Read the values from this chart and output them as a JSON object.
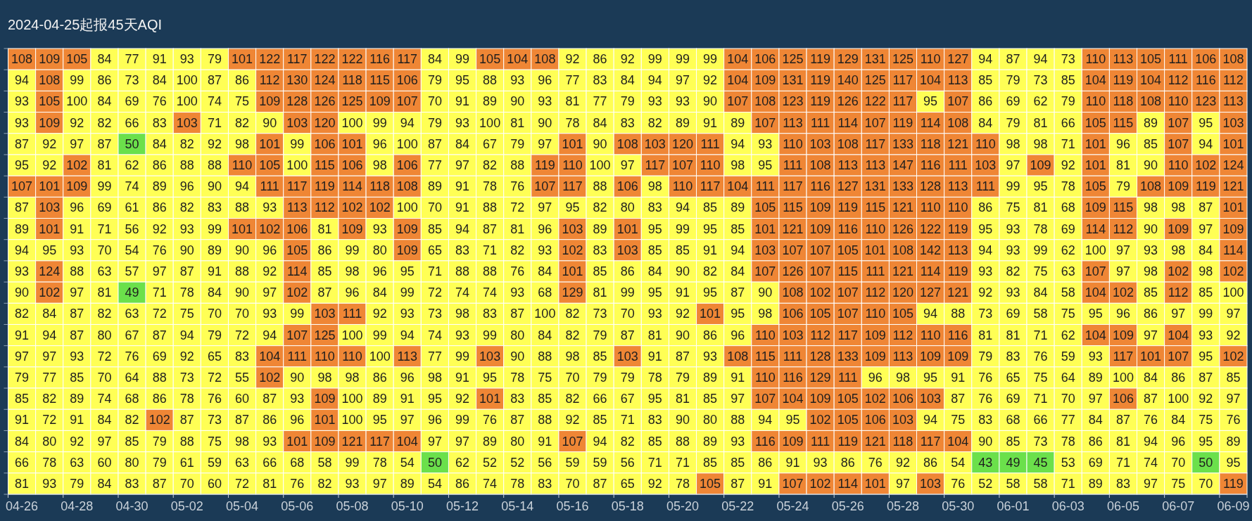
{
  "chart_data": {
    "type": "heatmap",
    "title": "2024-04-25起报45天AQI",
    "categories": [
      "04-26",
      null,
      "04-28",
      null,
      "04-30",
      null,
      "05-02",
      null,
      "05-04",
      null,
      "05-06",
      null,
      "05-08",
      null,
      "05-10",
      null,
      "05-12",
      null,
      "05-14",
      null,
      "05-16",
      null,
      "05-18",
      null,
      "05-20",
      null,
      "05-22",
      null,
      "05-24",
      null,
      "05-26",
      null,
      "05-28",
      null,
      "05-30",
      null,
      "06-01",
      null,
      "06-03",
      null,
      "06-05",
      null,
      "06-07",
      null,
      "06-09"
    ],
    "y_categories": [
      null,
      null,
      null,
      null,
      null,
      null,
      null,
      null,
      null,
      null,
      null,
      null,
      null,
      null,
      null,
      null,
      null,
      null,
      null,
      null,
      null
    ],
    "cells": [
      [
        108,
        109,
        105,
        84,
        77,
        91,
        93,
        79,
        101,
        122,
        117,
        122,
        122,
        116,
        117,
        84,
        99,
        105,
        104,
        108,
        92,
        86,
        92,
        99,
        99,
        99,
        104,
        106,
        125,
        119,
        129,
        131,
        125,
        110,
        127,
        94,
        87,
        94,
        73,
        110,
        113,
        105,
        111,
        106,
        108
      ],
      [
        94,
        108,
        99,
        86,
        73,
        84,
        100,
        87,
        86,
        112,
        130,
        124,
        118,
        115,
        106,
        79,
        95,
        88,
        93,
        96,
        77,
        83,
        84,
        94,
        97,
        92,
        104,
        109,
        131,
        119,
        140,
        125,
        117,
        104,
        113,
        85,
        79,
        73,
        85,
        104,
        119,
        104,
        112,
        116,
        112
      ],
      [
        93,
        105,
        100,
        84,
        69,
        76,
        100,
        74,
        75,
        109,
        128,
        126,
        125,
        109,
        107,
        70,
        91,
        89,
        90,
        93,
        81,
        77,
        79,
        93,
        93,
        90,
        107,
        108,
        123,
        119,
        126,
        122,
        117,
        95,
        107,
        86,
        69,
        62,
        79,
        110,
        118,
        108,
        110,
        123,
        113
      ],
      [
        93,
        109,
        92,
        82,
        66,
        83,
        103,
        71,
        82,
        90,
        103,
        120,
        100,
        99,
        94,
        79,
        93,
        100,
        81,
        90,
        78,
        84,
        83,
        82,
        89,
        91,
        89,
        107,
        113,
        111,
        114,
        107,
        119,
        114,
        108,
        84,
        79,
        81,
        66,
        105,
        115,
        89,
        107,
        95,
        103
      ],
      [
        87,
        92,
        97,
        87,
        50,
        84,
        82,
        92,
        98,
        101,
        99,
        106,
        101,
        96,
        100,
        87,
        84,
        67,
        79,
        97,
        101,
        90,
        108,
        103,
        120,
        111,
        94,
        93,
        110,
        103,
        108,
        117,
        133,
        118,
        121,
        110,
        98,
        98,
        71,
        101,
        96,
        85,
        107,
        94,
        101
      ],
      [
        95,
        92,
        102,
        81,
        62,
        86,
        88,
        88,
        110,
        105,
        100,
        115,
        106,
        98,
        106,
        77,
        97,
        82,
        88,
        119,
        110,
        100,
        97,
        117,
        107,
        110,
        98,
        95,
        111,
        108,
        113,
        113,
        147,
        116,
        111,
        103,
        97,
        109,
        92,
        101,
        81,
        90,
        110,
        102,
        124
      ],
      [
        107,
        101,
        109,
        99,
        74,
        89,
        96,
        90,
        94,
        111,
        117,
        119,
        114,
        118,
        108,
        89,
        91,
        78,
        76,
        107,
        117,
        88,
        106,
        98,
        110,
        117,
        104,
        111,
        117,
        116,
        127,
        131,
        133,
        128,
        113,
        111,
        99,
        95,
        78,
        105,
        79,
        108,
        109,
        119,
        121
      ],
      [
        87,
        103,
        96,
        69,
        61,
        86,
        82,
        83,
        88,
        93,
        113,
        112,
        102,
        102,
        100,
        70,
        91,
        88,
        72,
        97,
        95,
        82,
        80,
        83,
        94,
        85,
        89,
        105,
        115,
        109,
        119,
        115,
        121,
        110,
        110,
        86,
        75,
        81,
        68,
        109,
        115,
        98,
        98,
        87,
        101
      ],
      [
        89,
        101,
        91,
        71,
        56,
        92,
        93,
        99,
        101,
        102,
        106,
        81,
        109,
        93,
        109,
        85,
        94,
        87,
        81,
        96,
        103,
        89,
        101,
        95,
        99,
        95,
        85,
        101,
        121,
        109,
        116,
        110,
        126,
        122,
        119,
        95,
        93,
        78,
        69,
        114,
        112,
        90,
        109,
        97,
        109
      ],
      [
        94,
        95,
        93,
        70,
        54,
        76,
        90,
        89,
        90,
        96,
        105,
        86,
        99,
        80,
        109,
        65,
        83,
        71,
        82,
        93,
        102,
        83,
        103,
        85,
        85,
        91,
        94,
        103,
        107,
        107,
        105,
        101,
        108,
        142,
        113,
        94,
        93,
        99,
        62,
        100,
        97,
        93,
        98,
        84,
        114
      ],
      [
        93,
        124,
        88,
        63,
        57,
        97,
        87,
        91,
        88,
        92,
        114,
        85,
        98,
        96,
        95,
        71,
        88,
        88,
        76,
        84,
        101,
        85,
        86,
        84,
        90,
        82,
        84,
        107,
        126,
        107,
        115,
        111,
        121,
        114,
        119,
        93,
        82,
        75,
        63,
        107,
        97,
        98,
        102,
        98,
        102
      ],
      [
        90,
        102,
        97,
        81,
        49,
        71,
        78,
        84,
        90,
        97,
        102,
        87,
        96,
        84,
        99,
        72,
        74,
        74,
        93,
        68,
        129,
        81,
        99,
        95,
        91,
        95,
        87,
        90,
        108,
        102,
        107,
        112,
        120,
        127,
        121,
        92,
        93,
        84,
        58,
        104,
        102,
        85,
        112,
        85,
        100
      ],
      [
        82,
        84,
        87,
        82,
        63,
        72,
        75,
        70,
        70,
        93,
        99,
        103,
        111,
        92,
        93,
        73,
        98,
        83,
        87,
        100,
        82,
        73,
        70,
        93,
        92,
        101,
        95,
        98,
        106,
        105,
        107,
        110,
        105,
        94,
        88,
        73,
        69,
        58,
        75,
        95,
        96,
        86,
        97,
        99,
        97
      ],
      [
        91,
        94,
        87,
        80,
        67,
        87,
        94,
        79,
        72,
        94,
        107,
        125,
        100,
        99,
        94,
        74,
        93,
        99,
        80,
        84,
        82,
        79,
        87,
        81,
        90,
        86,
        96,
        110,
        103,
        112,
        117,
        109,
        112,
        110,
        116,
        81,
        81,
        71,
        62,
        104,
        109,
        97,
        104,
        93,
        92
      ],
      [
        97,
        97,
        93,
        72,
        76,
        69,
        92,
        65,
        83,
        104,
        111,
        110,
        110,
        100,
        113,
        77,
        99,
        103,
        90,
        88,
        98,
        85,
        103,
        91,
        87,
        93,
        108,
        115,
        111,
        128,
        133,
        109,
        113,
        109,
        109,
        79,
        83,
        76,
        59,
        93,
        117,
        101,
        107,
        95,
        102
      ],
      [
        79,
        77,
        85,
        70,
        64,
        88,
        73,
        72,
        55,
        102,
        90,
        98,
        98,
        86,
        96,
        98,
        91,
        95,
        78,
        75,
        70,
        79,
        79,
        78,
        79,
        89,
        91,
        110,
        116,
        129,
        111,
        96,
        98,
        95,
        91,
        76,
        65,
        75,
        64,
        89,
        100,
        84,
        86,
        87,
        85
      ],
      [
        85,
        82,
        89,
        74,
        68,
        86,
        78,
        76,
        60,
        87,
        93,
        109,
        100,
        89,
        91,
        95,
        92,
        101,
        83,
        85,
        82,
        66,
        67,
        95,
        81,
        85,
        97,
        107,
        104,
        109,
        105,
        102,
        106,
        103,
        87,
        76,
        69,
        71,
        70,
        97,
        106,
        87,
        100,
        92,
        97
      ],
      [
        91,
        72,
        91,
        84,
        82,
        102,
        87,
        73,
        87,
        86,
        96,
        101,
        100,
        95,
        97,
        96,
        99,
        76,
        87,
        88,
        92,
        85,
        71,
        83,
        90,
        80,
        88,
        94,
        95,
        102,
        105,
        106,
        103,
        94,
        75,
        83,
        68,
        66,
        77,
        84,
        87,
        76,
        84,
        75,
        76
      ],
      [
        84,
        80,
        92,
        97,
        85,
        79,
        88,
        75,
        98,
        93,
        101,
        109,
        121,
        117,
        104,
        97,
        97,
        89,
        80,
        91,
        107,
        94,
        82,
        85,
        88,
        89,
        93,
        116,
        109,
        111,
        119,
        121,
        118,
        117,
        104,
        90,
        85,
        73,
        78,
        86,
        81,
        94,
        96,
        95,
        89
      ],
      [
        66,
        78,
        63,
        60,
        80,
        79,
        61,
        59,
        63,
        66,
        68,
        58,
        99,
        78,
        54,
        50,
        62,
        52,
        52,
        56,
        59,
        59,
        56,
        71,
        71,
        85,
        85,
        86,
        91,
        93,
        86,
        76,
        92,
        86,
        54,
        43,
        49,
        45,
        53,
        69,
        71,
        74,
        70,
        50,
        95
      ],
      [
        81,
        93,
        79,
        84,
        83,
        87,
        70,
        60,
        72,
        81,
        76,
        82,
        93,
        97,
        89,
        54,
        86,
        74,
        78,
        83,
        70,
        87,
        65,
        92,
        78,
        105,
        87,
        91,
        107,
        102,
        114,
        101,
        97,
        103,
        76,
        52,
        58,
        58,
        71,
        89,
        83,
        97,
        75,
        70,
        119
      ]
    ],
    "colors": [
      [
        "#ef8635",
        "#ef8635",
        "#ef8635",
        "#ffff55",
        "#ffff55",
        "#ffff55",
        "#ffff55",
        "#ffff55",
        "#ef8635",
        "#ef8635",
        "#ef8635",
        "#ef8635",
        "#ef8635",
        "#ef8635",
        "#ef8635",
        "#ffff55",
        "#ffff55",
        "#ef8635",
        "#ef8635",
        "#ef8635",
        "#ffff55",
        "#ffff55",
        "#ffff55",
        "#ffff55",
        "#ffff55",
        "#ffff55",
        "#ef8635",
        "#ef8635",
        "#ef8635",
        "#ef8635",
        "#ef8635",
        "#ef8635",
        "#ef8635",
        "#ef8635",
        "#ef8635",
        "#ffff55",
        "#ffff55",
        "#ffff55",
        "#ffff55",
        "#ef8635",
        "#ef8635",
        "#ef8635",
        "#ef8635",
        "#ef8635",
        "#ef8635"
      ],
      [
        "#ffff55",
        "#ef8635",
        "#ffff55",
        "#ffff55",
        "#ffff55",
        "#ffff55",
        "#ffff55",
        "#ffff55",
        "#ffff55",
        "#ef8635",
        "#ef8635",
        "#ef8635",
        "#ef8635",
        "#ef8635",
        "#ef8635",
        "#ffff55",
        "#ffff55",
        "#ffff55",
        "#ffff55",
        "#ffff55",
        "#ffff55",
        "#ffff55",
        "#ffff55",
        "#ffff55",
        "#ffff55",
        "#ffff55",
        "#ef8635",
        "#ef8635",
        "#ef8635",
        "#ef8635",
        "#ef8635",
        "#ef8635",
        "#ef8635",
        "#ef8635",
        "#ef8635",
        "#ffff55",
        "#ffff55",
        "#ffff55",
        "#ffff55",
        "#ef8635",
        "#ef8635",
        "#ef8635",
        "#ef8635",
        "#ef8635",
        "#ef8635"
      ],
      [
        "#ffff55",
        "#ef8635",
        "#ffff55",
        "#ffff55",
        "#ffff55",
        "#ffff55",
        "#ffff55",
        "#ffff55",
        "#ffff55",
        "#ef8635",
        "#ef8635",
        "#ef8635",
        "#ef8635",
        "#ef8635",
        "#ef8635",
        "#ffff55",
        "#ffff55",
        "#ffff55",
        "#ffff55",
        "#ffff55",
        "#ffff55",
        "#ffff55",
        "#ffff55",
        "#ffff55",
        "#ffff55",
        "#ffff55",
        "#ef8635",
        "#ef8635",
        "#ef8635",
        "#ef8635",
        "#ef8635",
        "#ef8635",
        "#ef8635",
        "#ffff55",
        "#ef8635",
        "#ffff55",
        "#ffff55",
        "#ffff55",
        "#ffff55",
        "#ef8635",
        "#ef8635",
        "#ef8635",
        "#ef8635",
        "#ef8635",
        "#ef8635"
      ],
      [
        "#ffff55",
        "#ef8635",
        "#ffff55",
        "#ffff55",
        "#ffff55",
        "#ffff55",
        "#ef8635",
        "#ffff55",
        "#ffff55",
        "#ffff55",
        "#ef8635",
        "#ef8635",
        "#ffff55",
        "#ffff55",
        "#ffff55",
        "#ffff55",
        "#ffff55",
        "#ffff55",
        "#ffff55",
        "#ffff55",
        "#ffff55",
        "#ffff55",
        "#ffff55",
        "#ffff55",
        "#ffff55",
        "#ffff55",
        "#ffff55",
        "#ef8635",
        "#ef8635",
        "#ef8635",
        "#ef8635",
        "#ef8635",
        "#ef8635",
        "#ef8635",
        "#ef8635",
        "#ffff55",
        "#ffff55",
        "#ffff55",
        "#ffff55",
        "#ef8635",
        "#ef8635",
        "#ffff55",
        "#ef8635",
        "#ffff55",
        "#ef8635"
      ],
      [
        "#ffff55",
        "#ffff55",
        "#ffff55",
        "#ffff55",
        "#6be04b",
        "#ffff55",
        "#ffff55",
        "#ffff55",
        "#ffff55",
        "#ef8635",
        "#ffff55",
        "#ef8635",
        "#ef8635",
        "#ffff55",
        "#ffff55",
        "#ffff55",
        "#ffff55",
        "#ffff55",
        "#ffff55",
        "#ffff55",
        "#ef8635",
        "#ffff55",
        "#ef8635",
        "#ef8635",
        "#ef8635",
        "#ef8635",
        "#ffff55",
        "#ffff55",
        "#ef8635",
        "#ef8635",
        "#ef8635",
        "#ef8635",
        "#ef8635",
        "#ef8635",
        "#ef8635",
        "#ef8635",
        "#ffff55",
        "#ffff55",
        "#ffff55",
        "#ef8635",
        "#ffff55",
        "#ffff55",
        "#ef8635",
        "#ffff55",
        "#ef8635"
      ],
      [
        "#ffff55",
        "#ffff55",
        "#ef8635",
        "#ffff55",
        "#ffff55",
        "#ffff55",
        "#ffff55",
        "#ffff55",
        "#ef8635",
        "#ef8635",
        "#ffff55",
        "#ef8635",
        "#ef8635",
        "#ffff55",
        "#ef8635",
        "#ffff55",
        "#ffff55",
        "#ffff55",
        "#ffff55",
        "#ef8635",
        "#ef8635",
        "#ffff55",
        "#ffff55",
        "#ef8635",
        "#ef8635",
        "#ef8635",
        "#ffff55",
        "#ffff55",
        "#ef8635",
        "#ef8635",
        "#ef8635",
        "#ef8635",
        "#ef8635",
        "#ef8635",
        "#ef8635",
        "#ef8635",
        "#ffff55",
        "#ef8635",
        "#ffff55",
        "#ef8635",
        "#ffff55",
        "#ffff55",
        "#ef8635",
        "#ef8635",
        "#ef8635"
      ],
      [
        "#ef8635",
        "#ef8635",
        "#ef8635",
        "#ffff55",
        "#ffff55",
        "#ffff55",
        "#ffff55",
        "#ffff55",
        "#ffff55",
        "#ef8635",
        "#ef8635",
        "#ef8635",
        "#ef8635",
        "#ef8635",
        "#ef8635",
        "#ffff55",
        "#ffff55",
        "#ffff55",
        "#ffff55",
        "#ef8635",
        "#ef8635",
        "#ffff55",
        "#ef8635",
        "#ffff55",
        "#ef8635",
        "#ef8635",
        "#ef8635",
        "#ef8635",
        "#ef8635",
        "#ef8635",
        "#ef8635",
        "#ef8635",
        "#ef8635",
        "#ef8635",
        "#ef8635",
        "#ef8635",
        "#ffff55",
        "#ffff55",
        "#ffff55",
        "#ef8635",
        "#ffff55",
        "#ef8635",
        "#ef8635",
        "#ef8635",
        "#ef8635"
      ],
      [
        "#ffff55",
        "#ef8635",
        "#ffff55",
        "#ffff55",
        "#ffff55",
        "#ffff55",
        "#ffff55",
        "#ffff55",
        "#ffff55",
        "#ffff55",
        "#ef8635",
        "#ef8635",
        "#ef8635",
        "#ef8635",
        "#ffff55",
        "#ffff55",
        "#ffff55",
        "#ffff55",
        "#ffff55",
        "#ffff55",
        "#ffff55",
        "#ffff55",
        "#ffff55",
        "#ffff55",
        "#ffff55",
        "#ffff55",
        "#ffff55",
        "#ef8635",
        "#ef8635",
        "#ef8635",
        "#ef8635",
        "#ef8635",
        "#ef8635",
        "#ef8635",
        "#ef8635",
        "#ffff55",
        "#ffff55",
        "#ffff55",
        "#ffff55",
        "#ef8635",
        "#ef8635",
        "#ffff55",
        "#ffff55",
        "#ffff55",
        "#ef8635"
      ],
      [
        "#ffff55",
        "#ef8635",
        "#ffff55",
        "#ffff55",
        "#ffff55",
        "#ffff55",
        "#ffff55",
        "#ffff55",
        "#ef8635",
        "#ef8635",
        "#ef8635",
        "#ffff55",
        "#ef8635",
        "#ffff55",
        "#ef8635",
        "#ffff55",
        "#ffff55",
        "#ffff55",
        "#ffff55",
        "#ffff55",
        "#ef8635",
        "#ffff55",
        "#ef8635",
        "#ffff55",
        "#ffff55",
        "#ffff55",
        "#ffff55",
        "#ef8635",
        "#ef8635",
        "#ef8635",
        "#ef8635",
        "#ef8635",
        "#ef8635",
        "#ef8635",
        "#ef8635",
        "#ffff55",
        "#ffff55",
        "#ffff55",
        "#ffff55",
        "#ef8635",
        "#ef8635",
        "#ffff55",
        "#ef8635",
        "#ffff55",
        "#ef8635"
      ],
      [
        "#ffff55",
        "#ffff55",
        "#ffff55",
        "#ffff55",
        "#ffff55",
        "#ffff55",
        "#ffff55",
        "#ffff55",
        "#ffff55",
        "#ffff55",
        "#ef8635",
        "#ffff55",
        "#ffff55",
        "#ffff55",
        "#ef8635",
        "#ffff55",
        "#ffff55",
        "#ffff55",
        "#ffff55",
        "#ffff55",
        "#ef8635",
        "#ffff55",
        "#ef8635",
        "#ffff55",
        "#ffff55",
        "#ffff55",
        "#ffff55",
        "#ef8635",
        "#ef8635",
        "#ef8635",
        "#ef8635",
        "#ef8635",
        "#ef8635",
        "#ef8635",
        "#ef8635",
        "#ffff55",
        "#ffff55",
        "#ffff55",
        "#ffff55",
        "#ffff55",
        "#ffff55",
        "#ffff55",
        "#ffff55",
        "#ffff55",
        "#ef8635"
      ],
      [
        "#ffff55",
        "#ef8635",
        "#ffff55",
        "#ffff55",
        "#ffff55",
        "#ffff55",
        "#ffff55",
        "#ffff55",
        "#ffff55",
        "#ffff55",
        "#ef8635",
        "#ffff55",
        "#ffff55",
        "#ffff55",
        "#ffff55",
        "#ffff55",
        "#ffff55",
        "#ffff55",
        "#ffff55",
        "#ffff55",
        "#ef8635",
        "#ffff55",
        "#ffff55",
        "#ffff55",
        "#ffff55",
        "#ffff55",
        "#ffff55",
        "#ef8635",
        "#ef8635",
        "#ef8635",
        "#ef8635",
        "#ef8635",
        "#ef8635",
        "#ef8635",
        "#ef8635",
        "#ffff55",
        "#ffff55",
        "#ffff55",
        "#ffff55",
        "#ef8635",
        "#ffff55",
        "#ffff55",
        "#ef8635",
        "#ffff55",
        "#ef8635"
      ],
      [
        "#ffff55",
        "#ef8635",
        "#ffff55",
        "#ffff55",
        "#6be04b",
        "#ffff55",
        "#ffff55",
        "#ffff55",
        "#ffff55",
        "#ffff55",
        "#ef8635",
        "#ffff55",
        "#ffff55",
        "#ffff55",
        "#ffff55",
        "#ffff55",
        "#ffff55",
        "#ffff55",
        "#ffff55",
        "#ffff55",
        "#ef8635",
        "#ffff55",
        "#ffff55",
        "#ffff55",
        "#ffff55",
        "#ffff55",
        "#ffff55",
        "#ffff55",
        "#ef8635",
        "#ef8635",
        "#ef8635",
        "#ef8635",
        "#ef8635",
        "#ef8635",
        "#ef8635",
        "#ffff55",
        "#ffff55",
        "#ffff55",
        "#ffff55",
        "#ef8635",
        "#ef8635",
        "#ffff55",
        "#ef8635",
        "#ffff55",
        "#ffff55"
      ],
      [
        "#ffff55",
        "#ffff55",
        "#ffff55",
        "#ffff55",
        "#ffff55",
        "#ffff55",
        "#ffff55",
        "#ffff55",
        "#ffff55",
        "#ffff55",
        "#ffff55",
        "#ef8635",
        "#ef8635",
        "#ffff55",
        "#ffff55",
        "#ffff55",
        "#ffff55",
        "#ffff55",
        "#ffff55",
        "#ffff55",
        "#ffff55",
        "#ffff55",
        "#ffff55",
        "#ffff55",
        "#ffff55",
        "#ef8635",
        "#ffff55",
        "#ffff55",
        "#ef8635",
        "#ef8635",
        "#ef8635",
        "#ef8635",
        "#ef8635",
        "#ffff55",
        "#ffff55",
        "#ffff55",
        "#ffff55",
        "#ffff55",
        "#ffff55",
        "#ffff55",
        "#ffff55",
        "#ffff55",
        "#ffff55",
        "#ffff55",
        "#ffff55"
      ],
      [
        "#ffff55",
        "#ffff55",
        "#ffff55",
        "#ffff55",
        "#ffff55",
        "#ffff55",
        "#ffff55",
        "#ffff55",
        "#ffff55",
        "#ffff55",
        "#ef8635",
        "#ef8635",
        "#ffff55",
        "#ffff55",
        "#ffff55",
        "#ffff55",
        "#ffff55",
        "#ffff55",
        "#ffff55",
        "#ffff55",
        "#ffff55",
        "#ffff55",
        "#ffff55",
        "#ffff55",
        "#ffff55",
        "#ffff55",
        "#ffff55",
        "#ef8635",
        "#ef8635",
        "#ef8635",
        "#ef8635",
        "#ef8635",
        "#ef8635",
        "#ef8635",
        "#ef8635",
        "#ffff55",
        "#ffff55",
        "#ffff55",
        "#ffff55",
        "#ef8635",
        "#ef8635",
        "#ffff55",
        "#ef8635",
        "#ffff55",
        "#ffff55"
      ],
      [
        "#ffff55",
        "#ffff55",
        "#ffff55",
        "#ffff55",
        "#ffff55",
        "#ffff55",
        "#ffff55",
        "#ffff55",
        "#ffff55",
        "#ef8635",
        "#ef8635",
        "#ef8635",
        "#ef8635",
        "#ffff55",
        "#ef8635",
        "#ffff55",
        "#ffff55",
        "#ef8635",
        "#ffff55",
        "#ffff55",
        "#ffff55",
        "#ffff55",
        "#ef8635",
        "#ffff55",
        "#ffff55",
        "#ffff55",
        "#ef8635",
        "#ef8635",
        "#ef8635",
        "#ef8635",
        "#ef8635",
        "#ef8635",
        "#ef8635",
        "#ef8635",
        "#ef8635",
        "#ffff55",
        "#ffff55",
        "#ffff55",
        "#ffff55",
        "#ffff55",
        "#ef8635",
        "#ef8635",
        "#ef8635",
        "#ffff55",
        "#ef8635"
      ],
      [
        "#ffff55",
        "#ffff55",
        "#ffff55",
        "#ffff55",
        "#ffff55",
        "#ffff55",
        "#ffff55",
        "#ffff55",
        "#ffff55",
        "#ef8635",
        "#ffff55",
        "#ffff55",
        "#ffff55",
        "#ffff55",
        "#ffff55",
        "#ffff55",
        "#ffff55",
        "#ffff55",
        "#ffff55",
        "#ffff55",
        "#ffff55",
        "#ffff55",
        "#ffff55",
        "#ffff55",
        "#ffff55",
        "#ffff55",
        "#ffff55",
        "#ef8635",
        "#ef8635",
        "#ef8635",
        "#ef8635",
        "#ffff55",
        "#ffff55",
        "#ffff55",
        "#ffff55",
        "#ffff55",
        "#ffff55",
        "#ffff55",
        "#ffff55",
        "#ffff55",
        "#ffff55",
        "#ffff55",
        "#ffff55",
        "#ffff55",
        "#ffff55"
      ],
      [
        "#ffff55",
        "#ffff55",
        "#ffff55",
        "#ffff55",
        "#ffff55",
        "#ffff55",
        "#ffff55",
        "#ffff55",
        "#ffff55",
        "#ffff55",
        "#ffff55",
        "#ef8635",
        "#ffff55",
        "#ffff55",
        "#ffff55",
        "#ffff55",
        "#ffff55",
        "#ef8635",
        "#ffff55",
        "#ffff55",
        "#ffff55",
        "#ffff55",
        "#ffff55",
        "#ffff55",
        "#ffff55",
        "#ffff55",
        "#ffff55",
        "#ef8635",
        "#ef8635",
        "#ef8635",
        "#ef8635",
        "#ef8635",
        "#ef8635",
        "#ef8635",
        "#ffff55",
        "#ffff55",
        "#ffff55",
        "#ffff55",
        "#ffff55",
        "#ffff55",
        "#ef8635",
        "#ffff55",
        "#ffff55",
        "#ffff55",
        "#ffff55"
      ],
      [
        "#ffff55",
        "#ffff55",
        "#ffff55",
        "#ffff55",
        "#ffff55",
        "#ef8635",
        "#ffff55",
        "#ffff55",
        "#ffff55",
        "#ffff55",
        "#ffff55",
        "#ef8635",
        "#ffff55",
        "#ffff55",
        "#ffff55",
        "#ffff55",
        "#ffff55",
        "#ffff55",
        "#ffff55",
        "#ffff55",
        "#ffff55",
        "#ffff55",
        "#ffff55",
        "#ffff55",
        "#ffff55",
        "#ffff55",
        "#ffff55",
        "#ffff55",
        "#ffff55",
        "#ef8635",
        "#ef8635",
        "#ef8635",
        "#ef8635",
        "#ffff55",
        "#ffff55",
        "#ffff55",
        "#ffff55",
        "#ffff55",
        "#ffff55",
        "#ffff55",
        "#ffff55",
        "#ffff55",
        "#ffff55",
        "#ffff55",
        "#ffff55"
      ],
      [
        "#ffff55",
        "#ffff55",
        "#ffff55",
        "#ffff55",
        "#ffff55",
        "#ffff55",
        "#ffff55",
        "#ffff55",
        "#ffff55",
        "#ffff55",
        "#ef8635",
        "#ef8635",
        "#ef8635",
        "#ef8635",
        "#ef8635",
        "#ffff55",
        "#ffff55",
        "#ffff55",
        "#ffff55",
        "#ffff55",
        "#ef8635",
        "#ffff55",
        "#ffff55",
        "#ffff55",
        "#ffff55",
        "#ffff55",
        "#ffff55",
        "#ef8635",
        "#ef8635",
        "#ef8635",
        "#ef8635",
        "#ef8635",
        "#ef8635",
        "#ef8635",
        "#ef8635",
        "#ffff55",
        "#ffff55",
        "#ffff55",
        "#ffff55",
        "#ffff55",
        "#ffff55",
        "#ffff55",
        "#ffff55",
        "#ffff55",
        "#ffff55"
      ],
      [
        "#ffff55",
        "#ffff55",
        "#ffff55",
        "#ffff55",
        "#ffff55",
        "#ffff55",
        "#ffff55",
        "#ffff55",
        "#ffff55",
        "#ffff55",
        "#ffff55",
        "#ffff55",
        "#ffff55",
        "#ffff55",
        "#ffff55",
        "#6be04b",
        "#ffff55",
        "#ffff55",
        "#ffff55",
        "#ffff55",
        "#ffff55",
        "#ffff55",
        "#ffff55",
        "#ffff55",
        "#ffff55",
        "#ffff55",
        "#ffff55",
        "#ffff55",
        "#ffff55",
        "#ffff55",
        "#ffff55",
        "#ffff55",
        "#ffff55",
        "#ffff55",
        "#ffff55",
        "#6be04b",
        "#6be04b",
        "#6be04b",
        "#ffff55",
        "#ffff55",
        "#ffff55",
        "#ffff55",
        "#ffff55",
        "#6be04b",
        "#ffff55"
      ],
      [
        "#ffff55",
        "#ffff55",
        "#ffff55",
        "#ffff55",
        "#ffff55",
        "#ffff55",
        "#ffff55",
        "#ffff55",
        "#ffff55",
        "#ffff55",
        "#ffff55",
        "#ffff55",
        "#ffff55",
        "#ffff55",
        "#ffff55",
        "#ffff55",
        "#ffff55",
        "#ffff55",
        "#ffff55",
        "#ffff55",
        "#ffff55",
        "#ffff55",
        "#ffff55",
        "#ffff55",
        "#ffff55",
        "#ef8635",
        "#ffff55",
        "#ffff55",
        "#ef8635",
        "#ef8635",
        "#ef8635",
        "#ef8635",
        "#ffff55",
        "#ef8635",
        "#ffff55",
        "#ffff55",
        "#ffff55",
        "#ffff55",
        "#ffff55",
        "#ffff55",
        "#ffff55",
        "#ffff55",
        "#ffff55",
        "#ffff55",
        "#ef8635"
      ]
    ],
    "data_labels": true,
    "tick_labels": "x"
  }
}
